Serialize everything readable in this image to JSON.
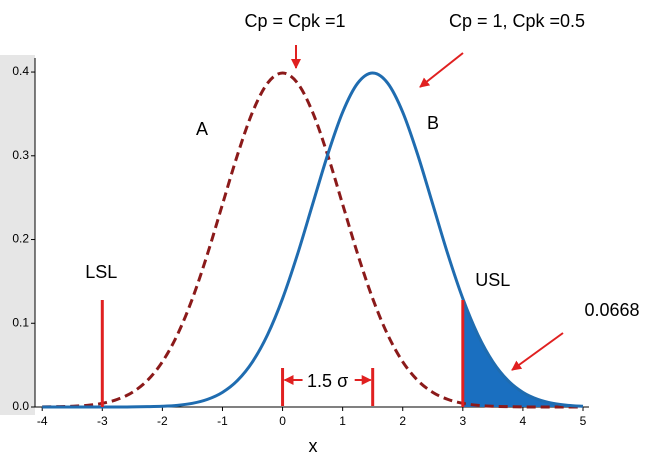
{
  "chart_data": {
    "type": "line",
    "xlabel": "x",
    "annotations": [
      "Cp = Cpk =1",
      "Cp = 1, Cpk =0.5"
    ],
    "x": [
      -4,
      -3.75,
      -3.5,
      -3.25,
      -3,
      -2.75,
      -2.5,
      -2.25,
      -2,
      -1.75,
      -1.5,
      -1.25,
      -1,
      -0.75,
      -0.5,
      -0.25,
      0,
      0.25,
      0.5,
      0.75,
      1,
      1.25,
      1.5,
      1.75,
      2,
      2.25,
      2.5,
      2.75,
      3,
      3.25,
      3.5,
      3.75,
      4,
      4.25,
      4.5,
      4.75,
      5
    ],
    "series": [
      {
        "name": "A",
        "color": "#8b1a1a",
        "dashed": true,
        "values": [
          0.0001,
          0.0004,
          0.0009,
          0.002,
          0.0044,
          0.0091,
          0.0175,
          0.0317,
          0.054,
          0.0863,
          0.1295,
          0.1826,
          0.242,
          0.3011,
          0.3521,
          0.3867,
          0.3989,
          0.3867,
          0.3521,
          0.3011,
          0.242,
          0.1826,
          0.1295,
          0.0863,
          0.054,
          0.0317,
          0.0175,
          0.0091,
          0.0044,
          0.002,
          0.0009,
          0.0004,
          0.0001,
          0,
          0,
          0,
          0
        ]
      },
      {
        "name": "B",
        "color": "#1f6cb0",
        "dashed": false,
        "values": [
          0,
          0,
          0,
          0,
          0,
          0,
          0.0001,
          0.0004,
          0.0009,
          0.002,
          0.0044,
          0.0091,
          0.0175,
          0.0317,
          0.054,
          0.0863,
          0.1295,
          0.1826,
          0.242,
          0.3011,
          0.3521,
          0.3867,
          0.3989,
          0.3867,
          0.3521,
          0.3011,
          0.242,
          0.1826,
          0.1295,
          0.0863,
          0.054,
          0.0317,
          0.0175,
          0.0091,
          0.0044,
          0.002,
          0.0009
        ]
      }
    ],
    "tail_area": {
      "from": 3,
      "label": 0.0668,
      "color": "#1a6fc0"
    },
    "spec_limits": [
      {
        "label": "LSL",
        "x": -3
      },
      {
        "label": "USL",
        "x": 3
      }
    ],
    "shift": {
      "label": "1.5 σ",
      "from": 0,
      "to": 1.5
    },
    "annotation_color": "#e02020",
    "xlim": [
      -4.12,
      5.1
    ],
    "ylim": [
      0,
      0.412
    ],
    "xticks": [
      -4,
      -3,
      -2,
      -1,
      0,
      1,
      2,
      3,
      4,
      5
    ],
    "yticks": [
      {
        "value": 0,
        "label": "0.0"
      },
      {
        "value": 0.1,
        "label": "0.1"
      },
      {
        "value": 0.2,
        "label": "0.2"
      },
      {
        "value": 0.3,
        "label": "0.3"
      },
      {
        "value": 0.4,
        "label": "0.4"
      }
    ]
  }
}
